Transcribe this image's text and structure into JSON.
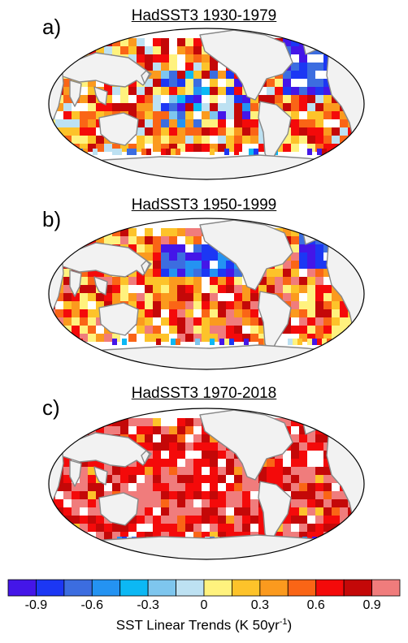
{
  "panels": [
    {
      "letter": "a)",
      "title": "HadSST3 1930-1979",
      "pattern": "cool"
    },
    {
      "letter": "b)",
      "title": "HadSST3 1950-1999",
      "pattern": "mixed"
    },
    {
      "letter": "c)",
      "title": "HadSST3 1970-2018",
      "pattern": "warm"
    }
  ],
  "colorbar": {
    "colors": [
      "#4416e8",
      "#1c37f4",
      "#3c6de0",
      "#2493f2",
      "#0cb8f4",
      "#7ec6ee",
      "#bde1f2",
      "#fff27e",
      "#fdc32a",
      "#fb9a1e",
      "#fa6516",
      "#f40a0a",
      "#c40808",
      "#f07c7c"
    ],
    "tick_labels": [
      "-0.9",
      "-0.6",
      "-0.3",
      "0",
      "0.3",
      "0.6",
      "0.9"
    ],
    "title_main": "SST Linear Trends (K 50yr",
    "title_sup": "-1",
    "title_end": ")"
  },
  "map_colors": {
    "land": "#f2f2f2",
    "coast": "#888888",
    "outline": "#000000"
  }
}
